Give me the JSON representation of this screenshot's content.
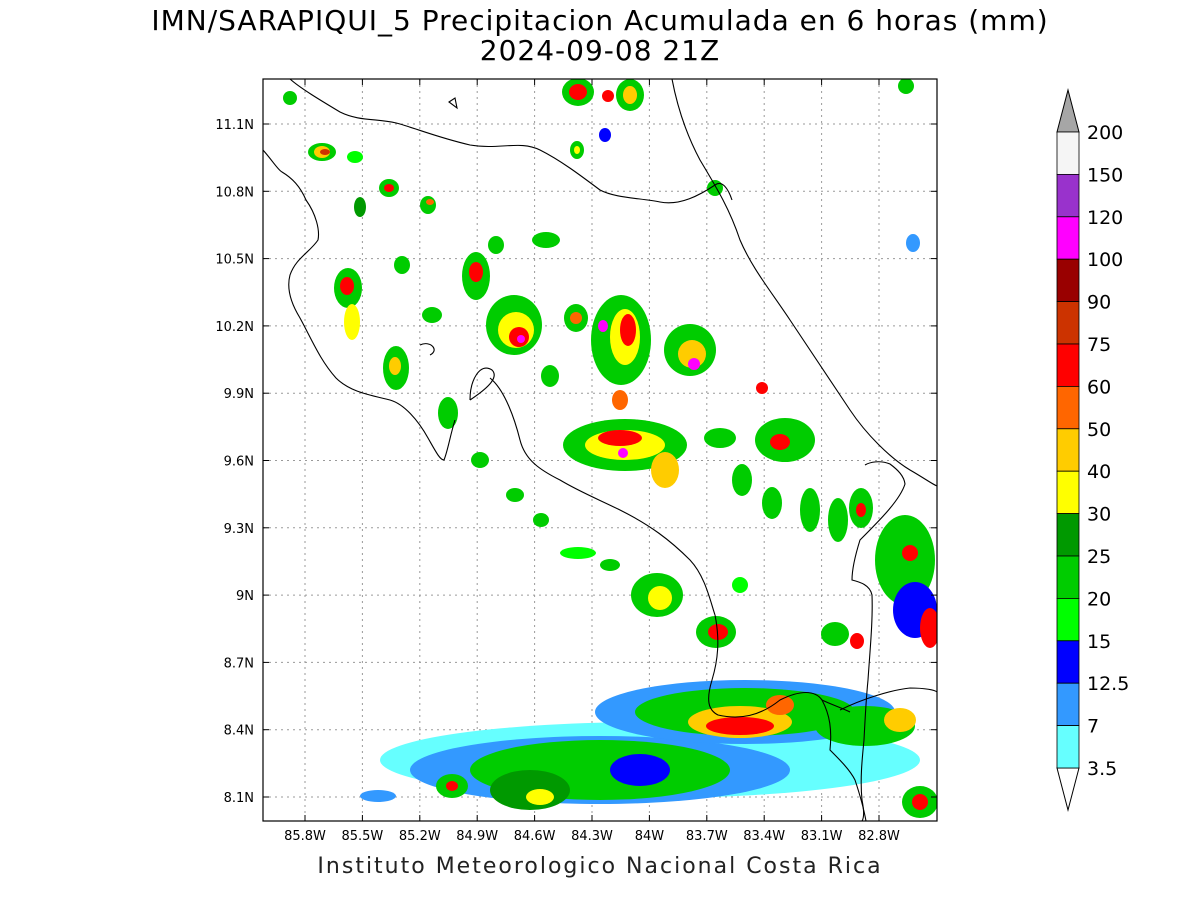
{
  "title_line1": "IMN/SARAPIQUI_5 Precipitacion Acumulada en 6 horas (mm)",
  "title_line2": "2024-09-08 21Z",
  "footer": "Instituto Meteorologico Nacional Costa Rica",
  "x_ticks": [
    "85.8W",
    "85.5W",
    "85.2W",
    "84.9W",
    "84.6W",
    "84.3W",
    "84W",
    "83.7W",
    "83.4W",
    "83.1W",
    "82.8W"
  ],
  "y_ticks": [
    "11.1N",
    "10.8N",
    "10.5N",
    "10.2N",
    "9.9N",
    "9.6N",
    "9.3N",
    "9N",
    "8.7N",
    "8.4N",
    "8.1N"
  ],
  "colorbar": {
    "labels": [
      "200",
      "150",
      "120",
      "100",
      "90",
      "75",
      "60",
      "50",
      "40",
      "30",
      "25",
      "20",
      "15",
      "12.5",
      "7",
      "3.5"
    ],
    "colors": [
      "#f5f5f5",
      "#9932cc",
      "#ff00ff",
      "#990000",
      "#cc3300",
      "#ff0000",
      "#ff6600",
      "#ffcc00",
      "#ffff00",
      "#009900",
      "#00cc00",
      "#00ff00",
      "#0000ff",
      "#3399ff",
      "#66ffff"
    ]
  },
  "colors": {
    "grid": "#9a9a9a",
    "coast": "#000000",
    "cb_over": "#a6a6a6"
  }
}
